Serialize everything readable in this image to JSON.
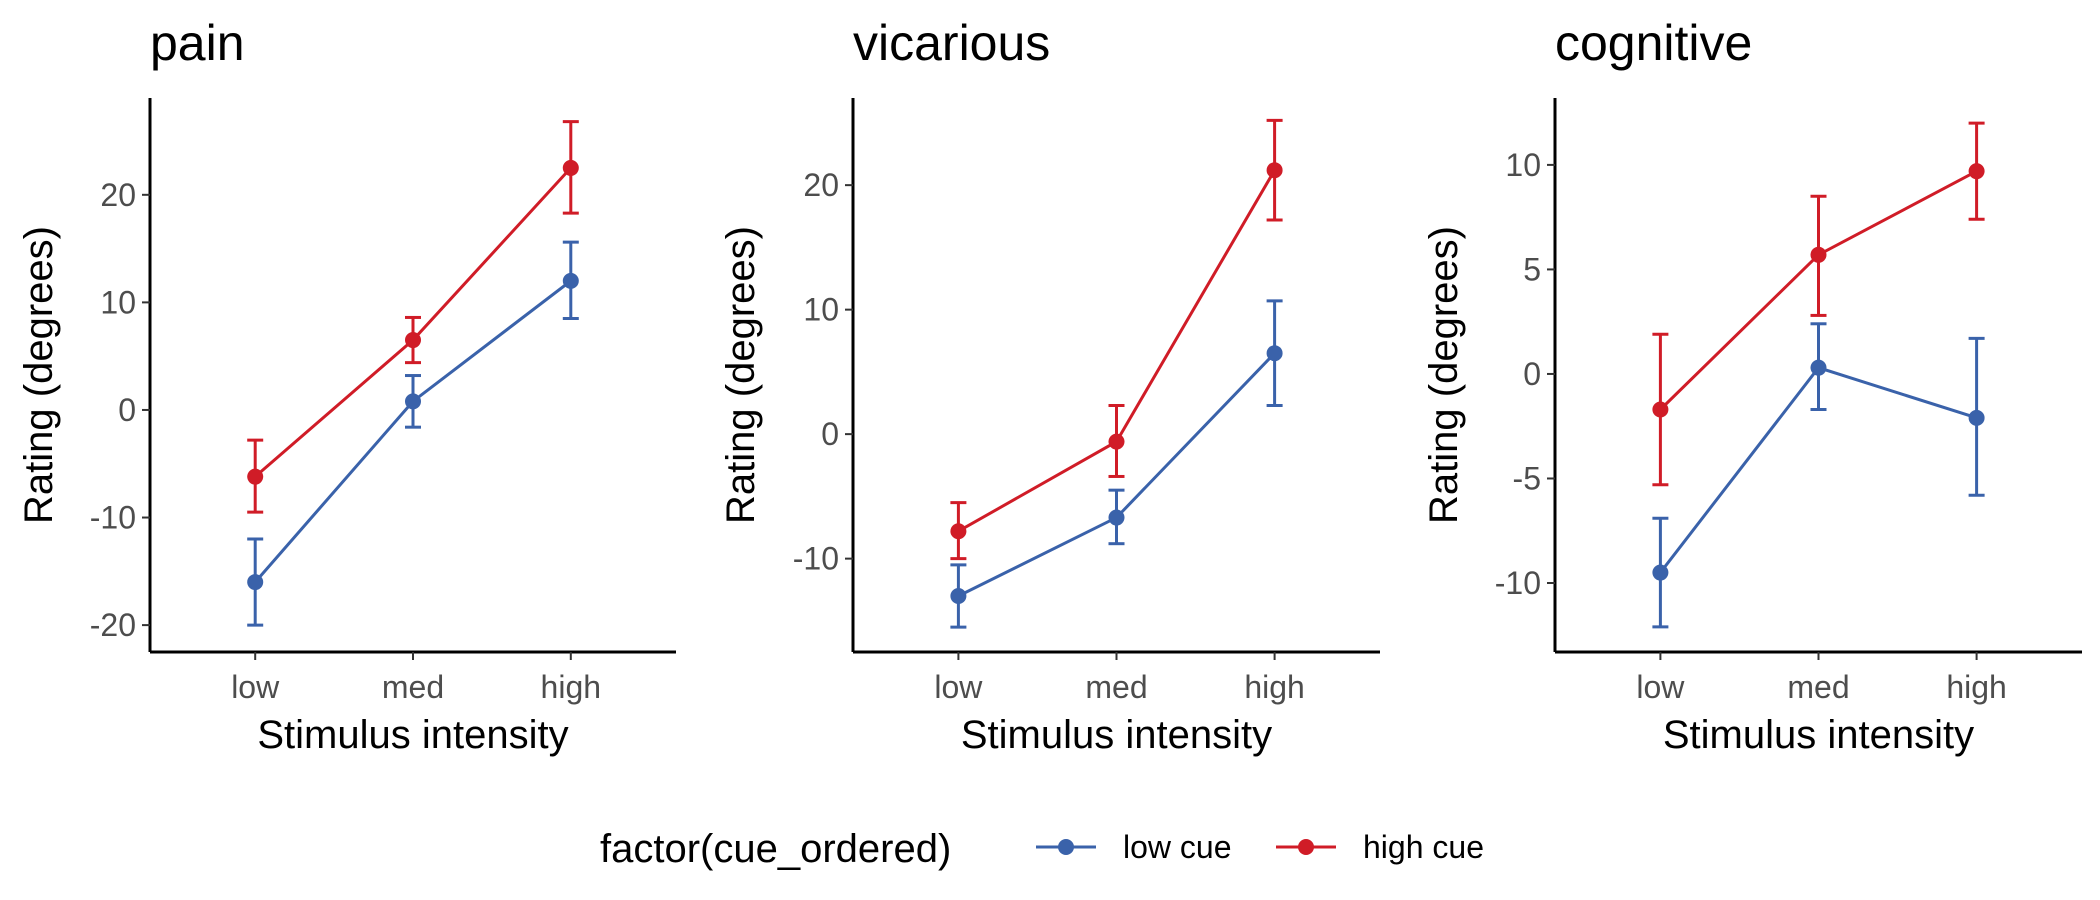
{
  "chart_data": [
    {
      "type": "line",
      "title": "pain",
      "xlabel": "Stimulus intensity",
      "ylabel": "Rating (degrees)",
      "categories": [
        "low",
        "med",
        "high"
      ],
      "ylim": [
        -22.5,
        29
      ],
      "yticks": [
        -20,
        -10,
        0,
        10,
        20
      ],
      "series": [
        {
          "name": "low cue",
          "values": [
            -16,
            0.8,
            12
          ],
          "err_low": [
            -20,
            -1.6,
            8.5
          ],
          "err_high": [
            -12,
            3.2,
            15.6
          ]
        },
        {
          "name": "high cue",
          "values": [
            -6.2,
            6.5,
            22.5
          ],
          "err_low": [
            -9.5,
            4.4,
            18.3
          ],
          "err_high": [
            -2.8,
            8.6,
            26.8
          ]
        }
      ]
    },
    {
      "type": "line",
      "title": "vicarious",
      "xlabel": "Stimulus intensity",
      "ylabel": "Rating (degrees)",
      "categories": [
        "low",
        "med",
        "high"
      ],
      "ylim": [
        -17.5,
        27
      ],
      "yticks": [
        -10,
        0,
        10,
        20
      ],
      "series": [
        {
          "name": "low cue",
          "values": [
            -13,
            -6.7,
            6.5
          ],
          "err_low": [
            -15.5,
            -8.8,
            2.3
          ],
          "err_high": [
            -10.5,
            -4.5,
            10.7
          ]
        },
        {
          "name": "high cue",
          "values": [
            -7.8,
            -0.6,
            21.2
          ],
          "err_low": [
            -10,
            -3.4,
            17.2
          ],
          "err_high": [
            -5.5,
            2.3,
            25.2
          ]
        }
      ]
    },
    {
      "type": "line",
      "title": "cognitive",
      "xlabel": "Stimulus intensity",
      "ylabel": "Rating (degrees)",
      "categories": [
        "low",
        "med",
        "high"
      ],
      "ylim": [
        -13.3,
        13.2
      ],
      "yticks": [
        -10,
        -5,
        0,
        5,
        10
      ],
      "series": [
        {
          "name": "low cue",
          "values": [
            -9.5,
            0.3,
            -2.1
          ],
          "err_low": [
            -12.1,
            -1.7,
            -5.8
          ],
          "err_high": [
            -6.9,
            2.4,
            1.7
          ]
        },
        {
          "name": "high cue",
          "values": [
            -1.7,
            5.7,
            9.7
          ],
          "err_low": [
            -5.3,
            2.8,
            7.4
          ],
          "err_high": [
            1.9,
            8.5,
            12
          ]
        }
      ]
    }
  ],
  "legend": {
    "title": "factor(cue_ordered)",
    "position": "bottom",
    "items": [
      {
        "label": "low cue",
        "color": "#3a62aa"
      },
      {
        "label": "high cue",
        "color": "#d01c27"
      }
    ]
  },
  "colors": {
    "low cue": "#3a62aa",
    "high cue": "#d01c27"
  },
  "grid": false
}
